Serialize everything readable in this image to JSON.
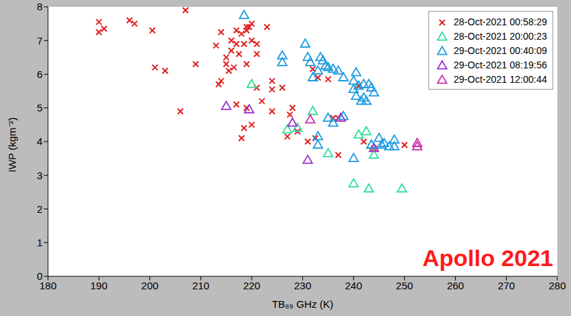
{
  "chart_data": {
    "type": "scatter",
    "x_label": "TB₈₉ GHz (K)",
    "y_label": "IWP (kgm⁻²)",
    "annotation": "Apollo 2021",
    "xlim": [
      180,
      280
    ],
    "ylim": [
      0,
      8
    ],
    "xticks": [
      180,
      190,
      200,
      210,
      220,
      230,
      240,
      250,
      260,
      270,
      280
    ],
    "yticks": [
      0,
      1,
      2,
      3,
      4,
      5,
      6,
      7,
      8
    ],
    "grid": false,
    "legend": "upper right",
    "series": [
      {
        "name": "28-Oct-2021 00:58:29",
        "color": "#e02020",
        "marker": "x",
        "x": [
          190,
          190,
          191,
          196,
          197,
          200.5,
          201,
          203,
          206,
          207,
          209,
          213,
          213.5,
          214,
          214,
          215,
          215,
          215.5,
          216,
          216,
          216.5,
          217,
          217,
          217,
          217.5,
          218,
          218,
          218.5,
          218.5,
          219,
          219,
          219,
          219,
          219.5,
          220,
          220,
          220,
          221,
          221,
          221,
          222,
          223,
          224,
          224,
          224,
          226,
          227,
          227.5,
          228,
          229,
          231,
          232,
          232.5,
          233,
          235,
          236,
          237,
          237,
          241,
          242,
          244,
          250
        ],
        "y": [
          7.55,
          7.25,
          7.35,
          7.6,
          7.5,
          7.3,
          6.2,
          6.1,
          4.9,
          7.9,
          6.3,
          6.85,
          5.7,
          5.8,
          7.25,
          6.5,
          6.3,
          6.1,
          7.0,
          6.7,
          6.2,
          7.3,
          5.1,
          6.9,
          6.6,
          4.1,
          7.2,
          4.4,
          6.9,
          7.3,
          6.3,
          5.0,
          7.4,
          7.4,
          7.0,
          4.5,
          7.5,
          6.6,
          5.6,
          6.9,
          5.2,
          7.4,
          5.8,
          5.55,
          4.9,
          5.6,
          4.15,
          4.8,
          5.0,
          4.3,
          4.0,
          6.15,
          4.1,
          5.9,
          5.85,
          4.7,
          3.6,
          4.7,
          5.65,
          4.0,
          3.8,
          3.9
        ]
      },
      {
        "name": "28-Oct-2021 20:00:23",
        "color": "#33dd99",
        "marker": "triangle",
        "x": [
          220,
          227,
          229,
          232,
          235,
          240,
          241,
          242.5,
          243,
          244,
          243.5,
          249.5
        ],
        "y": [
          5.7,
          4.35,
          4.4,
          4.9,
          3.65,
          2.75,
          4.2,
          4.3,
          2.6,
          3.6,
          3.9,
          2.6
        ]
      },
      {
        "name": "29-Oct-2021 00:40:09",
        "color": "#1e9be0",
        "marker": "triangle",
        "x": [
          218.5,
          226,
          226,
          230.5,
          231,
          231.5,
          232,
          233,
          233.5,
          234,
          234.5,
          235,
          236,
          237,
          238,
          240,
          240.5,
          240,
          240.5,
          241,
          241.5,
          242,
          242,
          243,
          243.5,
          244,
          242.5,
          233,
          233,
          235,
          236,
          238,
          240,
          243.5,
          245,
          246,
          247,
          248,
          248,
          245.5
        ],
        "y": [
          7.75,
          6.55,
          6.35,
          6.9,
          6.5,
          6.35,
          5.9,
          6.1,
          6.5,
          6.4,
          6.25,
          6.2,
          6.15,
          6.1,
          5.9,
          5.8,
          6.05,
          5.55,
          5.35,
          5.65,
          5.2,
          5.7,
          5.3,
          5.7,
          5.6,
          5.45,
          5.2,
          4.15,
          3.9,
          4.7,
          4.55,
          4.75,
          3.5,
          3.9,
          4.1,
          3.95,
          3.85,
          4.05,
          3.85,
          3.9
        ]
      },
      {
        "name": "29-Oct-2021 08:19:56",
        "color": "#9933cc",
        "marker": "triangle",
        "x": [
          215,
          219.5,
          228,
          231,
          237.5,
          244
        ],
        "y": [
          5.05,
          4.95,
          4.55,
          3.45,
          4.7,
          3.8
        ]
      },
      {
        "name": "29-Oct-2021 12:00:44",
        "color": "#cc2faa",
        "marker": "triangle",
        "x": [
          231.5,
          252.5,
          252.5
        ],
        "y": [
          4.65,
          3.95,
          3.85
        ]
      }
    ]
  }
}
